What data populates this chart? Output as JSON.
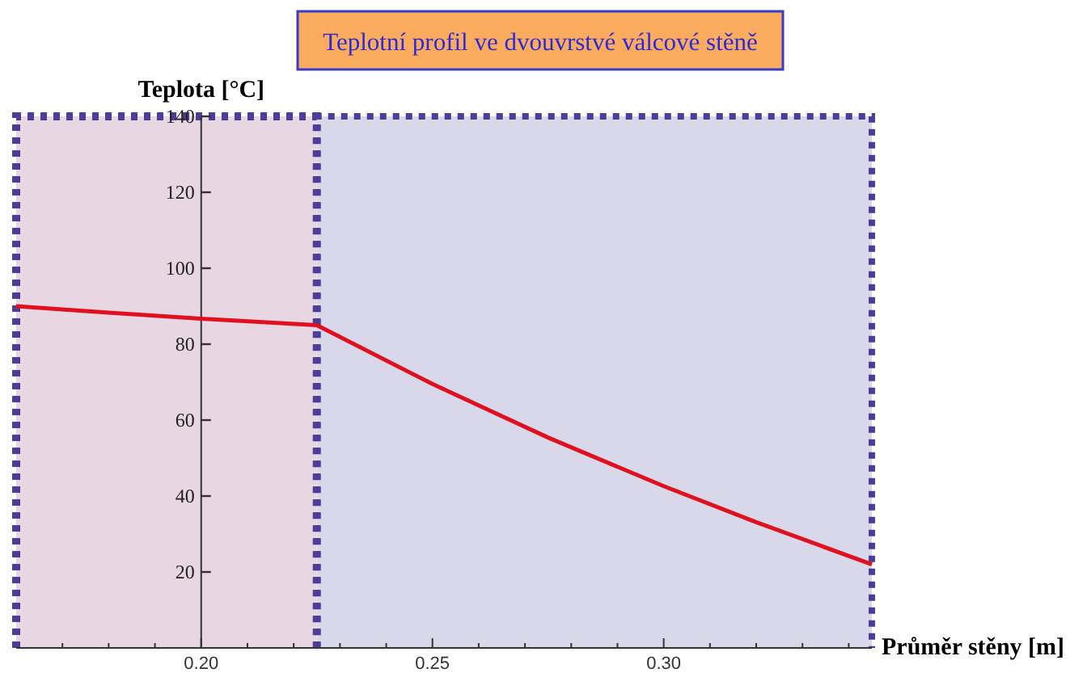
{
  "chart_data": {
    "type": "line",
    "title": "Teplotní profil ve dvouvrstvé válcové stěně",
    "xlabel": "Průměr stěny [m]",
    "ylabel": "Teplota [°C]",
    "x": [
      0.16,
      0.18,
      0.2,
      0.225,
      0.25,
      0.275,
      0.3,
      0.32,
      0.345
    ],
    "series": [
      {
        "color": "#e0101e",
        "values": [
          90,
          88.3,
          86.7,
          85,
          69.5,
          55.4,
          42.6,
          33.1,
          22
        ]
      }
    ],
    "xlim": [
      0.16,
      0.345
    ],
    "ylim": [
      0,
      140
    ],
    "xticks": [
      {
        "value": 0.17,
        "label": null
      },
      {
        "value": 0.18,
        "label": null
      },
      {
        "value": 0.19,
        "label": null
      },
      {
        "value": 0.2,
        "label": "0.20"
      },
      {
        "value": 0.21,
        "label": null
      },
      {
        "value": 0.22,
        "label": null
      },
      {
        "value": 0.23,
        "label": null
      },
      {
        "value": 0.24,
        "label": null
      },
      {
        "value": 0.25,
        "label": "0.25"
      },
      {
        "value": 0.26,
        "label": null
      },
      {
        "value": 0.27,
        "label": null
      },
      {
        "value": 0.28,
        "label": null
      },
      {
        "value": 0.29,
        "label": null
      },
      {
        "value": 0.3,
        "label": "0.30"
      },
      {
        "value": 0.31,
        "label": null
      },
      {
        "value": 0.32,
        "label": null
      },
      {
        "value": 0.33,
        "label": null
      },
      {
        "value": 0.34,
        "label": null
      }
    ],
    "yticks": [
      20,
      40,
      60,
      80,
      100,
      120,
      140
    ],
    "bands": [
      {
        "axis": "x",
        "from": 0.16,
        "to": 0.225,
        "color": "#e8d6e2"
      },
      {
        "axis": "x",
        "from": 0.225,
        "to": 0.345,
        "color": "#d8d8ea"
      }
    ],
    "line_style": "solid",
    "marker": "none",
    "grid": false
  }
}
